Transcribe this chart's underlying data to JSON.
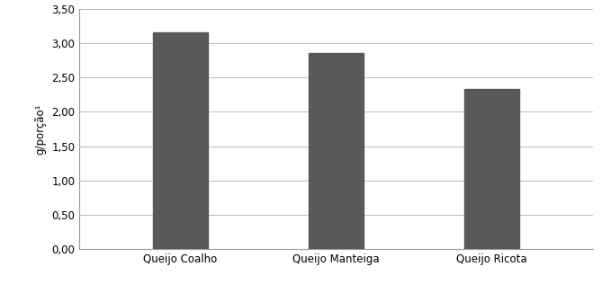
{
  "categories": [
    "Queijo Coalho",
    "Queijo Manteiga",
    "Queijo Ricota"
  ],
  "values": [
    3.16,
    2.86,
    2.33
  ],
  "bar_color": "#595959",
  "ylabel": "g/porção¹",
  "ylim": [
    0,
    3.5
  ],
  "yticks": [
    0.0,
    0.5,
    1.0,
    1.5,
    2.0,
    2.5,
    3.0,
    3.5
  ],
  "ytick_labels": [
    "0,00",
    "0,50",
    "1,00",
    "1,50",
    "2,00",
    "2,50",
    "3,00",
    "3,50"
  ],
  "background_color": "#ffffff",
  "bar_width": 0.35,
  "grid_color": "#bbbbbb",
  "spine_color": "#999999",
  "tick_fontsize": 8.5,
  "ylabel_fontsize": 8.5
}
